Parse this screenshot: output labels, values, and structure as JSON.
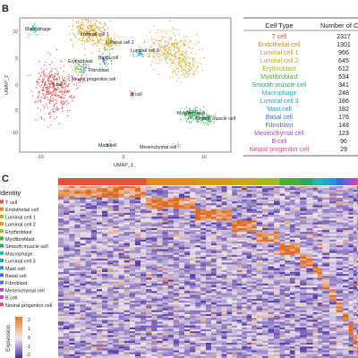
{
  "panels": {
    "b": "B",
    "c": "C"
  },
  "umap": {
    "xlabel": "UMAP_1",
    "ylabel": "UMAP_2",
    "x_ticks": [
      "-10",
      "0",
      "10"
    ],
    "y_ticks": [
      "10",
      "5",
      "0",
      "-5",
      "-10"
    ],
    "cluster_labels": [
      {
        "name": "Macrophage",
        "color": "#3fc7d6"
      },
      {
        "name": "Luminal cell 1",
        "color": "#d8a020"
      },
      {
        "name": "Luminal cell 2",
        "color": "#c8b020"
      },
      {
        "name": "Basal cell",
        "color": "#2b6fd6"
      },
      {
        "name": "Luminal cell 3",
        "color": "#3aa0e0"
      },
      {
        "name": "Fibroblast",
        "color": "#7a8ad8"
      },
      {
        "name": "Erythroblast",
        "color": "#70c040"
      },
      {
        "name": "T cell",
        "color": "#e84848"
      },
      {
        "name": "Neural progenitor cell",
        "color": "#e060a0"
      },
      {
        "name": "B cell",
        "color": "#c040c0"
      },
      {
        "name": "Myofibroblast",
        "color": "#30b060"
      },
      {
        "name": "Smooth muscle cell",
        "color": "#50b870"
      },
      {
        "name": "Mast cell",
        "color": "#4090d0"
      },
      {
        "name": "Mesenchymal cell",
        "color": "#b090c0"
      }
    ]
  },
  "cell_table": {
    "headers": [
      "Cell Type",
      "Number of C"
    ],
    "rows": [
      {
        "type": "T cell",
        "count": "2317",
        "color": "#e8503a"
      },
      {
        "type": "Endothelial cell",
        "count": "1301",
        "color": "#e08a20"
      },
      {
        "type": "Luminal cell 1",
        "count": "966",
        "color": "#d89a18"
      },
      {
        "type": "Luminal cell 2",
        "count": "645",
        "color": "#c8a818"
      },
      {
        "type": "Erythroblast",
        "count": "612",
        "color": "#a8b820"
      },
      {
        "type": "Myofibroblast",
        "count": "534",
        "color": "#48b030"
      },
      {
        "type": "Smooth muscle cell",
        "count": "341",
        "color": "#30a860"
      },
      {
        "type": "Macrophage",
        "count": "248",
        "color": "#20b8b0"
      },
      {
        "type": "Luminal cell 3",
        "count": "186",
        "color": "#20a8d0"
      },
      {
        "type": "Mast cell",
        "count": "182",
        "color": "#2098d8"
      },
      {
        "type": "Basal cell",
        "count": "176",
        "color": "#3070d8"
      },
      {
        "type": "Fibroblast",
        "count": "148",
        "color": "#7060d0"
      },
      {
        "type": "Mesenchymal cell",
        "count": "123",
        "color": "#a050d0"
      },
      {
        "type": "B cell",
        "count": "96",
        "color": "#d040b8"
      },
      {
        "type": "Neural progenitor cell",
        "count": "29",
        "color": "#e04890"
      }
    ]
  },
  "heatmap": {
    "identity_label": "Identity",
    "legend": [
      {
        "name": "T cell",
        "color": "#e8503a"
      },
      {
        "name": "Endothelial cell",
        "color": "#e08a20"
      },
      {
        "name": "Luminal cell 1",
        "color": "#d89a18"
      },
      {
        "name": "Luminal cell 2",
        "color": "#c8a818"
      },
      {
        "name": "Erythroblast",
        "color": "#a8b820"
      },
      {
        "name": "Myofibroblast",
        "color": "#48b030"
      },
      {
        "name": "Smooth muscle cell",
        "color": "#30a860"
      },
      {
        "name": "Macrophage",
        "color": "#20b8b0"
      },
      {
        "name": "Luminal cell 3",
        "color": "#20a8d0"
      },
      {
        "name": "Mast cell",
        "color": "#2098d8"
      },
      {
        "name": "Basal cell",
        "color": "#3070d8"
      },
      {
        "name": "Fibroblast",
        "color": "#7060d0"
      },
      {
        "name": "Mesenchymal cell",
        "color": "#a050d0"
      },
      {
        "name": "B cell",
        "color": "#d040b8"
      },
      {
        "name": "Neural progenitor cell",
        "color": "#e04890"
      }
    ],
    "expression_label": "Expression",
    "scale_ticks": [
      "2",
      "1",
      "0",
      "-1",
      "-2"
    ]
  }
}
